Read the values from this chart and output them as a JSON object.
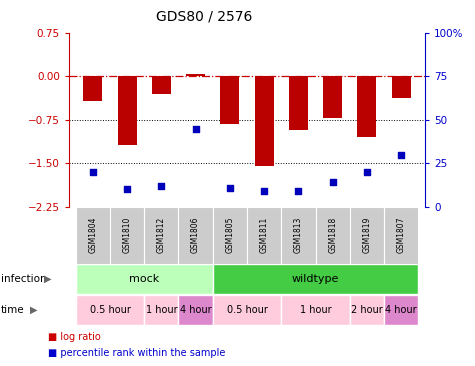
{
  "title": "GDS80 / 2576",
  "samples": [
    "GSM1804",
    "GSM1810",
    "GSM1812",
    "GSM1806",
    "GSM1805",
    "GSM1811",
    "GSM1813",
    "GSM1818",
    "GSM1819",
    "GSM1807"
  ],
  "log_ratios": [
    -0.42,
    -1.18,
    -0.3,
    0.04,
    -0.82,
    -1.55,
    -0.92,
    -0.72,
    -1.05,
    -0.38
  ],
  "percentile_ranks": [
    20,
    10,
    12,
    45,
    11,
    9,
    9,
    14,
    20,
    30
  ],
  "bar_color": "#bb0000",
  "scatter_color": "#0000bb",
  "yticks_left": [
    0.75,
    0.0,
    -0.75,
    -1.5,
    -2.25
  ],
  "yticks_right": [
    100,
    75,
    50,
    25,
    0
  ],
  "hline_color": "#cc0000",
  "infection_groups": [
    {
      "label": "mock",
      "start": 0,
      "end": 4,
      "color": "#bbffbb"
    },
    {
      "label": "wildtype",
      "start": 4,
      "end": 10,
      "color": "#44cc44"
    }
  ],
  "time_groups": [
    {
      "label": "0.5 hour",
      "start": 0,
      "end": 2,
      "color": "#ffccdd"
    },
    {
      "label": "1 hour",
      "start": 2,
      "end": 3,
      "color": "#ffccdd"
    },
    {
      "label": "4 hour",
      "start": 3,
      "end": 4,
      "color": "#dd88cc"
    },
    {
      "label": "0.5 hour",
      "start": 4,
      "end": 6,
      "color": "#ffccdd"
    },
    {
      "label": "1 hour",
      "start": 6,
      "end": 8,
      "color": "#ffccdd"
    },
    {
      "label": "2 hour",
      "start": 8,
      "end": 9,
      "color": "#ffccdd"
    },
    {
      "label": "4 hour",
      "start": 9,
      "end": 10,
      "color": "#dd88cc"
    }
  ],
  "bar_color_left": "#cc0000",
  "bar_color_right": "#0000cc",
  "background_color": "#ffffff"
}
